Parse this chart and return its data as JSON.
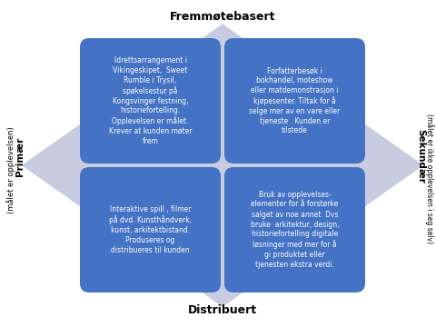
{
  "title_top": "Fremmøtebasert",
  "title_bottom": "Distribuert",
  "title_left_bold": "Primær",
  "title_left_sub": "(målet er opplevelsen)",
  "title_right_bold": "Sekundær",
  "title_right_sub": "(målet er ikke opplevelsen i seg selv)",
  "box_color": "#4472C4",
  "box_text_color": "#FFFFFF",
  "diamond_color": "#C8CCE0",
  "background_color": "#FFFFFF",
  "top_left_text": "Idrettsarrangement i\nVikingeskipet,  Sweet\nRumble i Trysil,\nspøkelsestur på\nKongsvinger festning,\nhistoriefortelling.\nOpplevelsen er målet.\nKrever at kunden møter\nfrem",
  "top_right_text": "Forfatterbesøk i\nbokhandel, moteshow\neller matdemonstrasjon i\nkjøpesenter. Tiltak for å\nselge mer av en vare eller\ntjeneste . Kunden er\ntilstede",
  "bottom_left_text": "Interaktive spill , filmer\npå dvd. Kunsthåndverk,\nkunst, arkitektbistand.\nProduseres og\ndistribueres til kunden",
  "bottom_right_text": "Bruk av opplevelses-\nelementer for å forstørke\nsalget av noe annet. Dvs\nbruke  arkitektur, design,\nhistoriefortelling digitale\nløsninger med mer for å\ngi produktet eller\ntjenesten ekstra verdi."
}
